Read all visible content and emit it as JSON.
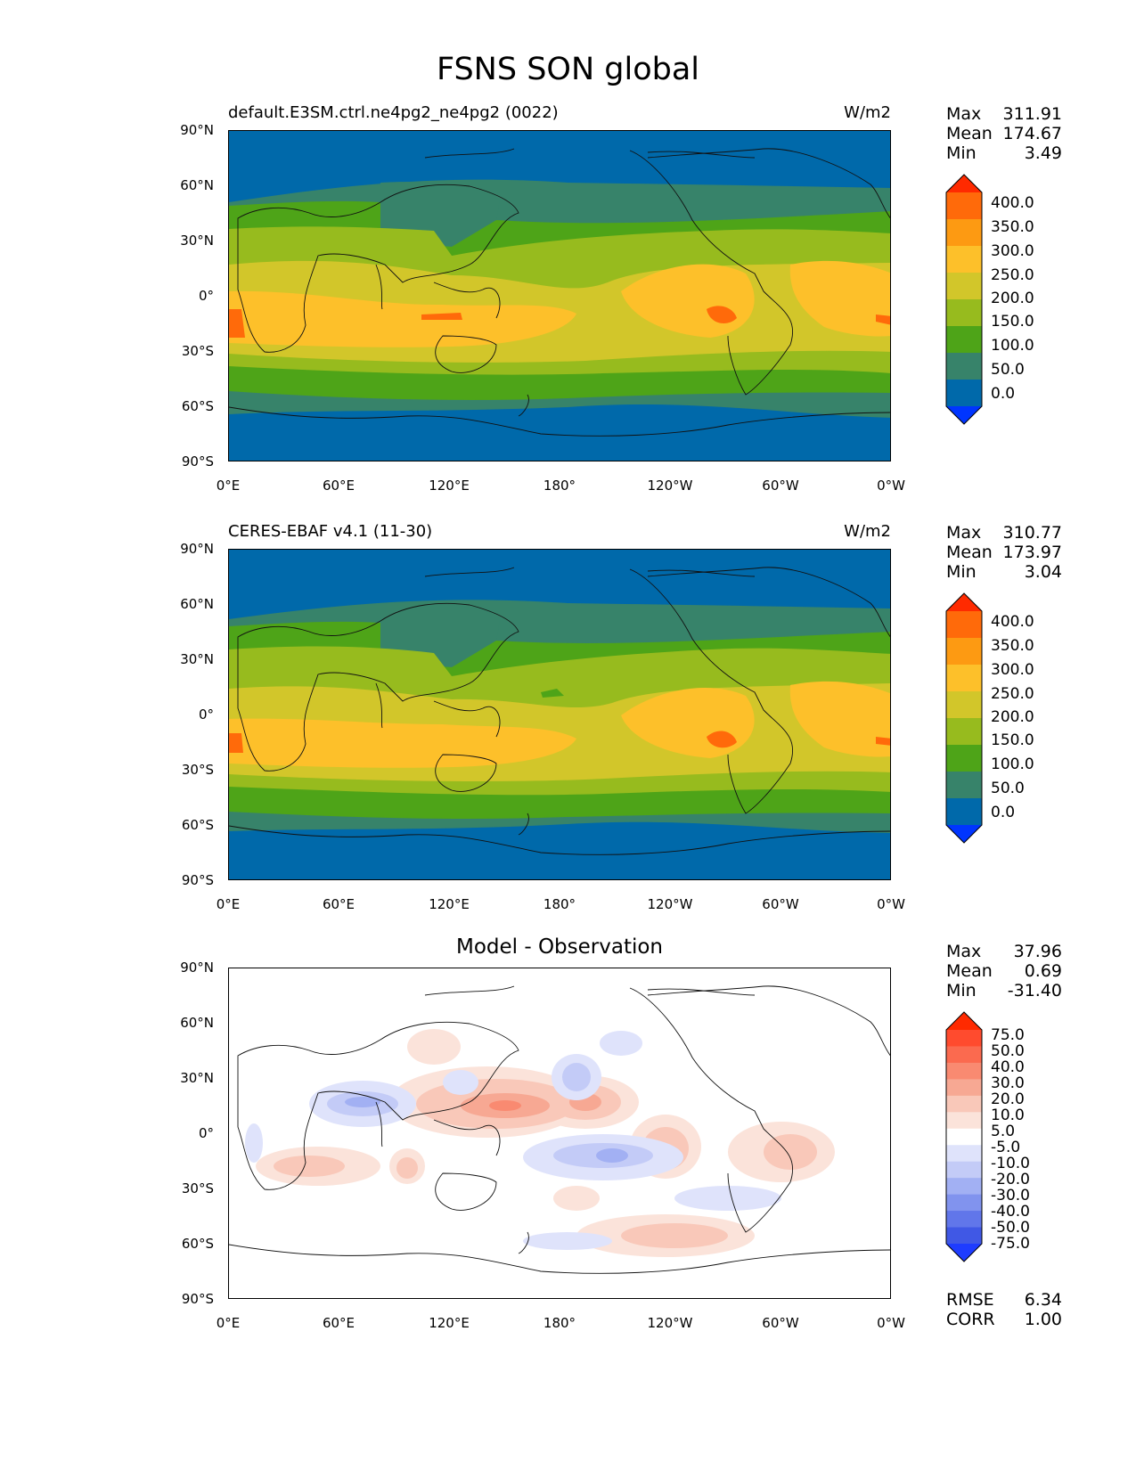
{
  "title": "FSNS SON global",
  "panels": [
    {
      "left_title": "default.E3SM.ctrl.ne4pg2_ne4pg2 (0022)",
      "units": "W/m2",
      "stats": {
        "max_label": "Max",
        "max": "311.91",
        "mean_label": "Mean",
        "mean": "174.67",
        "min_label": "Min",
        "min": "3.49"
      },
      "colorbar": {
        "labels": [
          "400.0",
          "350.0",
          "300.0",
          "250.0",
          "200.0",
          "150.0",
          "100.0",
          "50.0",
          "0.0"
        ],
        "colors": [
          "#ff2a00",
          "#ff6a0a",
          "#fd9a12",
          "#fdc02a",
          "#d2c62a",
          "#97bb1e",
          "#4ea418",
          "#37836a",
          "#0069aa",
          "#0035ff"
        ]
      }
    },
    {
      "left_title": "CERES-EBAF v4.1 (11-30)",
      "units": "W/m2",
      "stats": {
        "max_label": "Max",
        "max": "310.77",
        "mean_label": "Mean",
        "mean": "173.97",
        "min_label": "Min",
        "min": "3.04"
      },
      "colorbar": {
        "labels": [
          "400.0",
          "350.0",
          "300.0",
          "250.0",
          "200.0",
          "150.0",
          "100.0",
          "50.0",
          "0.0"
        ],
        "colors": [
          "#ff2a00",
          "#ff6a0a",
          "#fd9a12",
          "#fdc02a",
          "#d2c62a",
          "#97bb1e",
          "#4ea418",
          "#37836a",
          "#0069aa",
          "#0035ff"
        ]
      }
    },
    {
      "center_title": "Model - Observation",
      "stats": {
        "max_label": "Max",
        "max": "37.96",
        "mean_label": "Mean",
        "mean": "0.69",
        "min_label": "Min",
        "min": "-31.40"
      },
      "colorbar": {
        "labels": [
          "75.0",
          "50.0",
          "40.0",
          "30.0",
          "20.0",
          "10.0",
          "5.0",
          "-5.0",
          "-10.0",
          "-20.0",
          "-30.0",
          "-40.0",
          "-50.0",
          "-75.0"
        ],
        "colors": [
          "#ff2a00",
          "#ff4b2e",
          "#fb6a4f",
          "#f98a71",
          "#f7a893",
          "#f9c8b9",
          "#fbe3da",
          "#ffffff",
          "#dfe3fb",
          "#c3cbf7",
          "#a2b0f3",
          "#8193ee",
          "#6176ea",
          "#4058e5",
          "#1e3cff"
        ]
      },
      "rmse_label": "RMSE",
      "rmse": "6.34",
      "corr_label": "CORR",
      "corr": "1.00"
    }
  ],
  "axes": {
    "y_ticks": [
      "90°N",
      "60°N",
      "30°N",
      "0°",
      "30°S",
      "60°S",
      "90°S"
    ],
    "x_ticks": [
      "0°E",
      "60°E",
      "120°E",
      "180°",
      "120°W",
      "60°W",
      "0°W"
    ]
  }
}
